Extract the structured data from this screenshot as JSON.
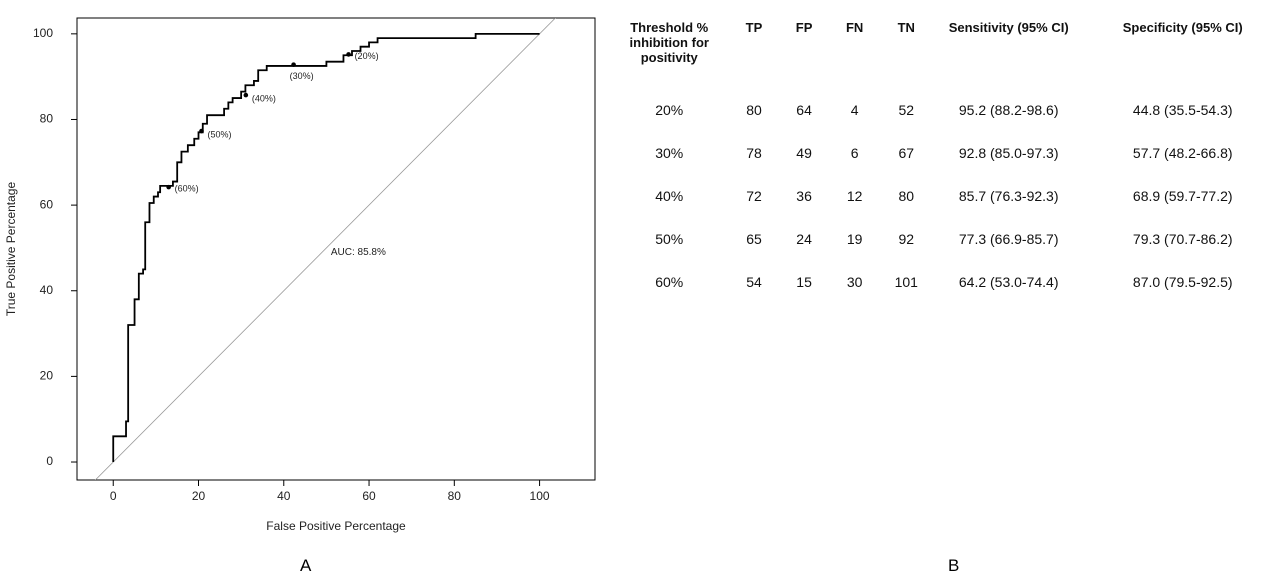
{
  "chart_data": {
    "type": "line",
    "xlabel": "False Positive Percentage",
    "ylabel": "True Positive Percentage",
    "xlim": [
      -8.5,
      113
    ],
    "ylim": [
      -4.2,
      103.7
    ],
    "xticks": [
      0,
      20,
      40,
      60,
      80,
      100
    ],
    "yticks": [
      0,
      20,
      40,
      60,
      80,
      100
    ],
    "series": [
      {
        "color": "#000000",
        "x": [
          0,
          0,
          3,
          3,
          3.5,
          3.5,
          5,
          5,
          6,
          6,
          7,
          7,
          7.5,
          7.5,
          8.5,
          8.5,
          9.5,
          9.5,
          10.5,
          10.5,
          11,
          11,
          14,
          14,
          15,
          15,
          16,
          16,
          17.5,
          17.5,
          19,
          19,
          20,
          20,
          21,
          21,
          22,
          22,
          26,
          26,
          27,
          27,
          28,
          28,
          30,
          30,
          31,
          31,
          33,
          33,
          34,
          34,
          36,
          36,
          50,
          50,
          54,
          54,
          56,
          56,
          58,
          58,
          60,
          60,
          62,
          62,
          85,
          85,
          100
        ],
        "values": [
          0,
          6,
          6,
          9.5,
          9.5,
          32,
          32,
          38,
          38,
          44,
          44,
          45,
          45,
          56,
          56,
          60.5,
          60.5,
          62,
          62,
          63,
          63,
          64.5,
          64.5,
          65.5,
          65.5,
          70,
          70,
          72.5,
          72.5,
          74,
          74,
          75.5,
          75.5,
          77,
          77,
          79,
          79,
          81,
          81,
          82.5,
          82.5,
          84,
          84,
          85,
          85,
          86.5,
          86.5,
          88,
          88,
          89,
          89,
          91.5,
          91.5,
          92.5,
          92.5,
          93.5,
          93.5,
          95,
          95,
          96,
          96,
          97,
          97,
          98,
          98,
          99,
          99,
          100,
          100
        ]
      }
    ],
    "points": {
      "x": [
        55.2,
        42.3,
        31.1,
        20.7,
        13.0
      ],
      "values": [
        95.2,
        92.8,
        85.7,
        77.3,
        64.2
      ],
      "labels": [
        "(20%)",
        "(30%)",
        "(40%)",
        "(50%)",
        "(60%)"
      ]
    },
    "annotation": "AUC: 85.8%"
  },
  "panel_labels": [
    "A",
    "B"
  ],
  "table": {
    "header": [
      "Threshold % inhibition for positivity",
      "TP",
      "FP",
      "FN",
      "TN",
      "Sensitivity (95% CI)",
      "Specificity (95% CI)"
    ],
    "rows": [
      [
        "20%",
        80,
        64,
        4,
        52,
        "95.2 (88.2-98.6)",
        "44.8 (35.5-54.3)"
      ],
      [
        "30%",
        78,
        49,
        6,
        67,
        "92.8 (85.0-97.3)",
        "57.7 (48.2-66.8)"
      ],
      [
        "40%",
        72,
        36,
        12,
        80,
        "85.7 (76.3-92.3)",
        "68.9 (59.7-77.2)"
      ],
      [
        "50%",
        65,
        24,
        19,
        92,
        "77.3 (66.9-85.7)",
        "79.3 (70.7-86.2)"
      ],
      [
        "60%",
        54,
        15,
        30,
        101,
        "64.2 (53.0-74.4)",
        "87.0 (79.5-92.5)"
      ]
    ]
  }
}
